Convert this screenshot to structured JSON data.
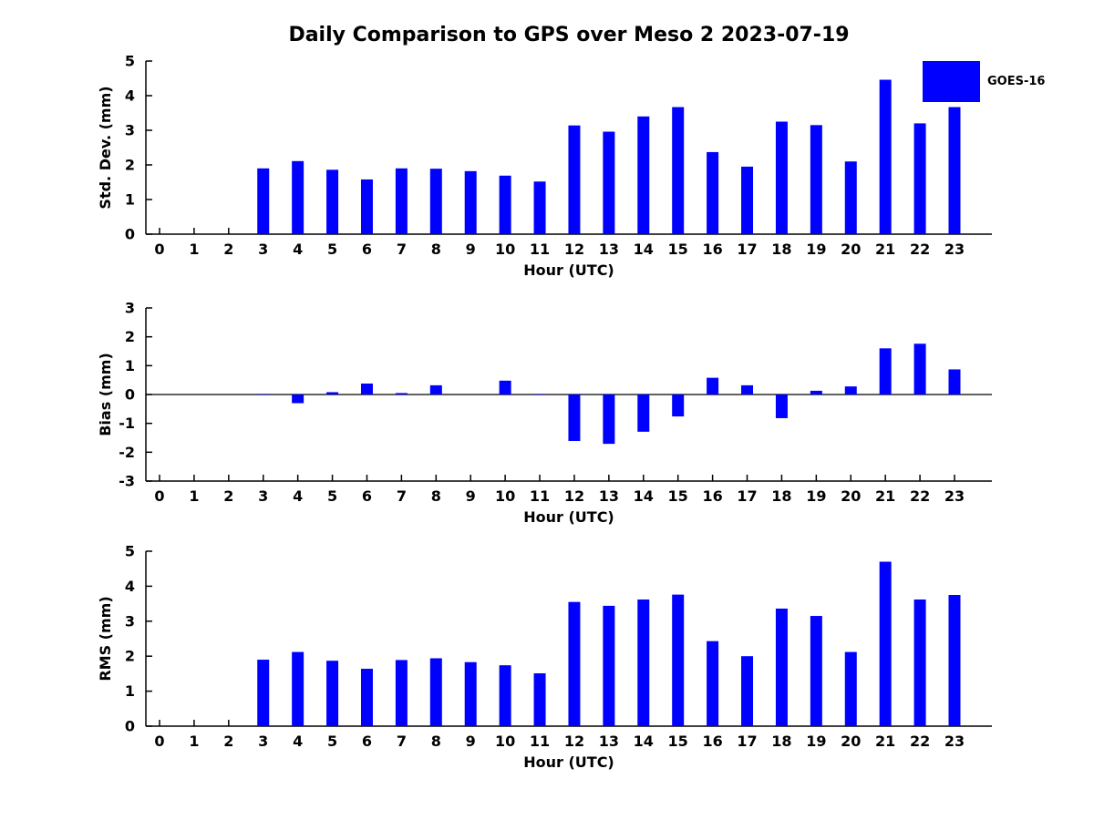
{
  "title": "Daily Comparison to GPS over Meso 2 2023-07-19",
  "legend": {
    "label": "GOES-16",
    "color": "#0000FF"
  },
  "chart_data": [
    {
      "type": "bar",
      "title": "Std. Dev. subplot",
      "xlabel": "Hour (UTC)",
      "ylabel": "Std. Dev. (mm)",
      "ylim": [
        0,
        5
      ],
      "yticks": [
        0,
        1,
        2,
        3,
        4,
        5
      ],
      "categories": [
        "0",
        "1",
        "2",
        "3",
        "4",
        "5",
        "6",
        "7",
        "8",
        "9",
        "10",
        "11",
        "12",
        "13",
        "14",
        "15",
        "16",
        "17",
        "18",
        "19",
        "20",
        "21",
        "22",
        "23"
      ],
      "series": [
        {
          "name": "GOES-16",
          "values": [
            0,
            0,
            0,
            1.9,
            2.11,
            1.86,
            1.58,
            1.9,
            1.89,
            1.82,
            1.69,
            1.52,
            3.14,
            2.96,
            3.4,
            3.67,
            2.37,
            1.95,
            3.25,
            3.15,
            2.1,
            4.46,
            3.2,
            3.67
          ]
        }
      ],
      "legend_position": "upper right outside",
      "grid": false
    },
    {
      "type": "bar",
      "title": "Bias subplot",
      "xlabel": "Hour (UTC)",
      "ylabel": "Bias (mm)",
      "ylim": [
        -3,
        3
      ],
      "yticks": [
        -3,
        -2,
        -1,
        0,
        1,
        2,
        3
      ],
      "categories": [
        "0",
        "1",
        "2",
        "3",
        "4",
        "5",
        "6",
        "7",
        "8",
        "9",
        "10",
        "11",
        "12",
        "13",
        "14",
        "15",
        "16",
        "17",
        "18",
        "19",
        "20",
        "21",
        "22",
        "23"
      ],
      "series": [
        {
          "name": "GOES-16",
          "values": [
            0,
            0,
            0,
            0.02,
            -0.3,
            0.08,
            0.38,
            0.05,
            0.32,
            0,
            0.48,
            0.02,
            -1.61,
            -1.71,
            -1.29,
            -0.76,
            0.58,
            0.32,
            -0.82,
            0.13,
            0.28,
            1.6,
            1.76,
            0.87
          ]
        }
      ],
      "grid": false
    },
    {
      "type": "bar",
      "title": "RMS subplot",
      "xlabel": "Hour (UTC)",
      "ylabel": "RMS (mm)",
      "ylim": [
        0,
        5
      ],
      "yticks": [
        0,
        1,
        2,
        3,
        4,
        5
      ],
      "categories": [
        "0",
        "1",
        "2",
        "3",
        "4",
        "5",
        "6",
        "7",
        "8",
        "9",
        "10",
        "11",
        "12",
        "13",
        "14",
        "15",
        "16",
        "17",
        "18",
        "19",
        "20",
        "21",
        "22",
        "23"
      ],
      "series": [
        {
          "name": "GOES-16",
          "values": [
            0,
            0,
            0,
            1.9,
            2.12,
            1.87,
            1.64,
            1.89,
            1.94,
            1.83,
            1.74,
            1.51,
            3.55,
            3.44,
            3.62,
            3.76,
            2.43,
            2.0,
            3.36,
            3.15,
            2.12,
            4.7,
            3.62,
            3.75
          ]
        }
      ],
      "grid": false
    }
  ]
}
